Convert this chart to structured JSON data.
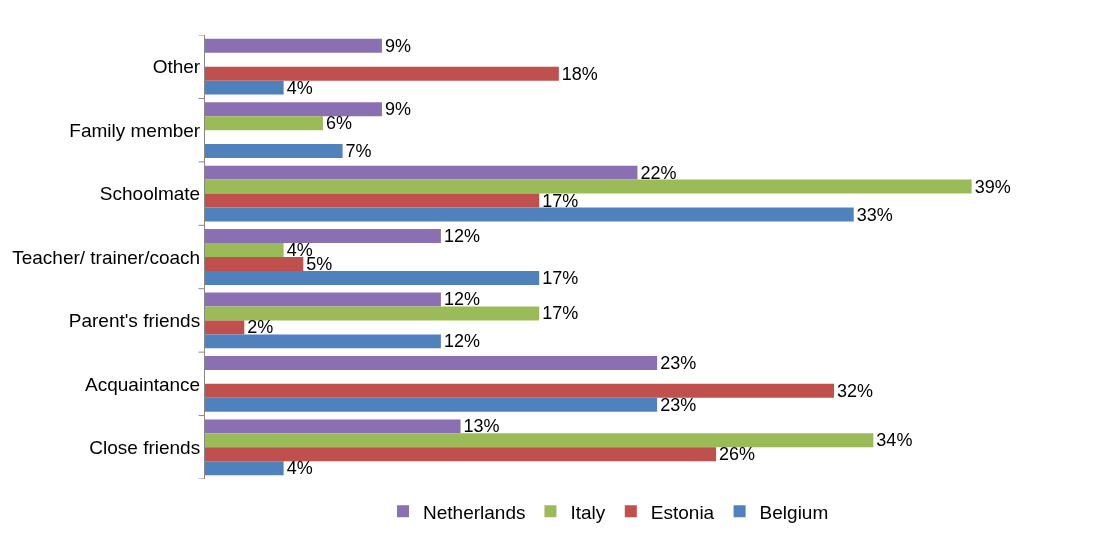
{
  "chart_data": {
    "type": "bar",
    "orientation": "horizontal",
    "categories": [
      "Other",
      "Family member",
      "Schoolmate",
      "Teacher/ trainer/coach",
      "Parent's friends",
      "Acquaintance",
      "Close friends"
    ],
    "series": [
      {
        "name": "Netherlands",
        "color": "#8a6fb3",
        "values": [
          9,
          9,
          22,
          12,
          12,
          23,
          13
        ],
        "value_labels": [
          "9%",
          "9%",
          "22%",
          "12%",
          "12%",
          "23%",
          "13%"
        ]
      },
      {
        "name": "Italy",
        "color": "#9bbb59",
        "values": [
          null,
          6,
          39,
          4,
          17,
          null,
          34
        ],
        "value_labels": [
          null,
          "6%",
          "39%",
          "4%",
          "17%",
          null,
          "34%"
        ]
      },
      {
        "name": "Estonia",
        "color": "#c0504d",
        "values": [
          18,
          null,
          17,
          5,
          2,
          32,
          26
        ],
        "value_labels": [
          "18%",
          null,
          "17%",
          "5%",
          "2%",
          "32%",
          "26%"
        ]
      },
      {
        "name": "Belgium",
        "color": "#4f81bd",
        "values": [
          4,
          7,
          33,
          17,
          12,
          23,
          4
        ],
        "value_labels": [
          "4%",
          "7%",
          "33%",
          "17%",
          "12%",
          "23%",
          "4%"
        ]
      }
    ],
    "grid": false,
    "legend": "bottom",
    "tick_labels": "y"
  }
}
